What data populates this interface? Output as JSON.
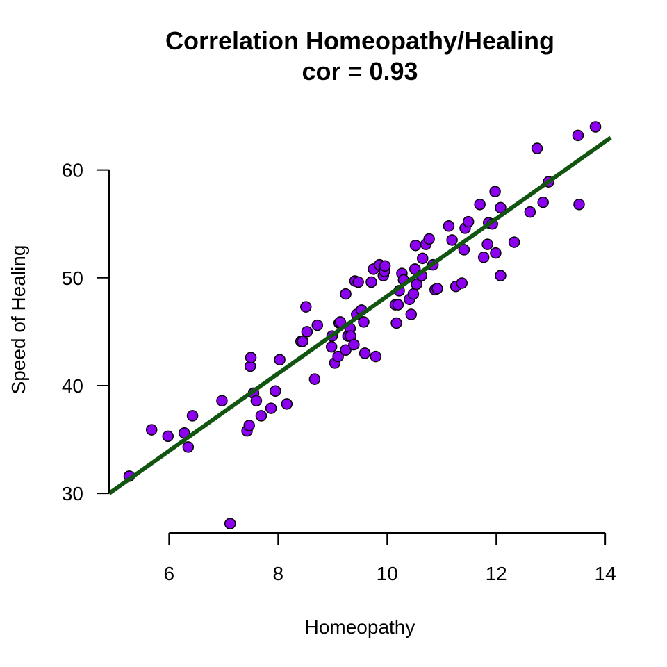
{
  "chart_data": {
    "type": "scatter",
    "title": "Correlation Homeopathy/Healing",
    "subtitle": "cor = 0.93",
    "xlabel": "Homeopathy",
    "ylabel": "Speed of Healing",
    "xlim": [
      4.9,
      14.1
    ],
    "ylim": [
      25.5,
      65
    ],
    "x_ticks": [
      6,
      8,
      10,
      12,
      14
    ],
    "y_ticks": [
      30,
      40,
      50,
      60
    ],
    "x_tick_labels": [
      "6",
      "8",
      "10",
      "12",
      "14"
    ],
    "y_tick_labels": [
      "30",
      "40",
      "50",
      "60"
    ],
    "grid": false,
    "legend": "none",
    "colors": {
      "point_fill": "#8b00ee",
      "point_stroke": "#000000",
      "fit_line": "#115511"
    },
    "fit_line": {
      "x": [
        4.9,
        14.1
      ],
      "y": [
        30.0,
        63.0
      ]
    },
    "series": [
      {
        "points": [
          [
            5.27,
            31.6
          ],
          [
            5.68,
            35.9
          ],
          [
            5.98,
            35.3
          ],
          [
            6.28,
            35.6
          ],
          [
            6.35,
            34.3
          ],
          [
            6.43,
            37.2
          ],
          [
            6.97,
            38.6
          ],
          [
            7.12,
            27.2
          ],
          [
            7.43,
            35.8
          ],
          [
            7.47,
            36.3
          ],
          [
            7.49,
            41.8
          ],
          [
            7.5,
            42.6
          ],
          [
            7.55,
            39.3
          ],
          [
            7.6,
            38.6
          ],
          [
            7.69,
            37.2
          ],
          [
            7.87,
            37.9
          ],
          [
            7.95,
            39.5
          ],
          [
            8.03,
            42.4
          ],
          [
            8.16,
            38.3
          ],
          [
            8.42,
            44.1
          ],
          [
            8.45,
            44.1
          ],
          [
            8.51,
            47.3
          ],
          [
            8.53,
            45.0
          ],
          [
            8.67,
            40.6
          ],
          [
            8.72,
            45.6
          ],
          [
            8.98,
            43.6
          ],
          [
            8.99,
            44.6
          ],
          [
            9.04,
            42.1
          ],
          [
            9.1,
            42.7
          ],
          [
            9.12,
            45.8
          ],
          [
            9.14,
            45.9
          ],
          [
            9.24,
            43.3
          ],
          [
            9.24,
            48.5
          ],
          [
            9.28,
            44.6
          ],
          [
            9.32,
            45.3
          ],
          [
            9.33,
            44.6
          ],
          [
            9.39,
            43.8
          ],
          [
            9.41,
            49.7
          ],
          [
            9.44,
            46.6
          ],
          [
            9.47,
            49.6
          ],
          [
            9.53,
            47.0
          ],
          [
            9.57,
            45.9
          ],
          [
            9.59,
            43.0
          ],
          [
            9.71,
            49.6
          ],
          [
            9.75,
            50.8
          ],
          [
            9.79,
            42.7
          ],
          [
            9.86,
            51.2
          ],
          [
            9.93,
            50.2
          ],
          [
            9.95,
            50.6
          ],
          [
            9.96,
            51.1
          ],
          [
            10.15,
            47.5
          ],
          [
            10.17,
            45.8
          ],
          [
            10.2,
            47.5
          ],
          [
            10.22,
            48.8
          ],
          [
            10.27,
            50.4
          ],
          [
            10.3,
            49.8
          ],
          [
            10.41,
            48.0
          ],
          [
            10.44,
            46.6
          ],
          [
            10.48,
            48.5
          ],
          [
            10.51,
            50.8
          ],
          [
            10.52,
            53.0
          ],
          [
            10.54,
            49.4
          ],
          [
            10.63,
            50.2
          ],
          [
            10.65,
            51.8
          ],
          [
            10.71,
            53.1
          ],
          [
            10.77,
            53.6
          ],
          [
            10.84,
            51.2
          ],
          [
            10.88,
            48.9
          ],
          [
            10.92,
            49.0
          ],
          [
            11.13,
            54.8
          ],
          [
            11.19,
            53.5
          ],
          [
            11.26,
            49.2
          ],
          [
            11.37,
            49.5
          ],
          [
            11.41,
            52.6
          ],
          [
            11.43,
            54.6
          ],
          [
            11.49,
            55.2
          ],
          [
            11.7,
            56.8
          ],
          [
            11.77,
            51.9
          ],
          [
            11.84,
            53.1
          ],
          [
            11.86,
            55.1
          ],
          [
            11.93,
            55.0
          ],
          [
            11.98,
            58.0
          ],
          [
            11.99,
            52.3
          ],
          [
            12.08,
            50.2
          ],
          [
            12.08,
            56.5
          ],
          [
            12.33,
            53.3
          ],
          [
            12.62,
            56.1
          ],
          [
            12.75,
            62.0
          ],
          [
            12.86,
            57.0
          ],
          [
            12.96,
            58.9
          ],
          [
            13.5,
            63.2
          ],
          [
            13.52,
            56.8
          ],
          [
            13.82,
            64.0
          ]
        ]
      }
    ]
  }
}
